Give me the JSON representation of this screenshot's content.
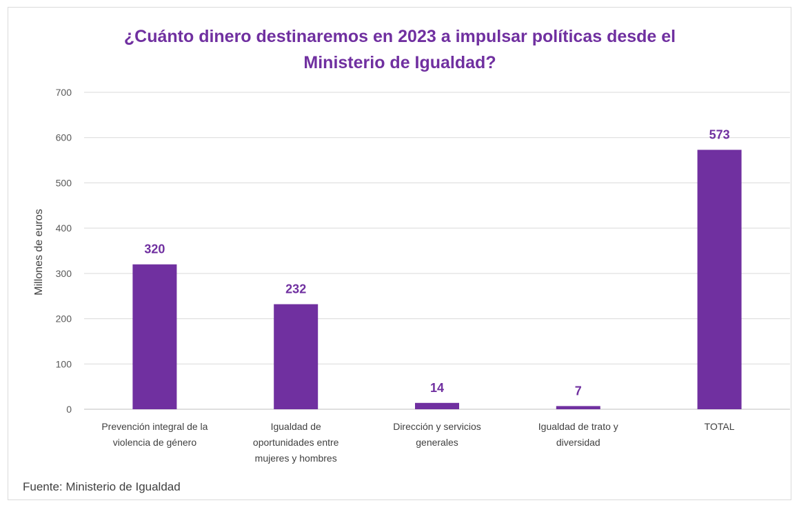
{
  "chart_data": {
    "type": "bar",
    "title": "¿Cuánto dinero destinaremos en 2023 a impulsar políticas desde el Ministerio de Igualdad?",
    "xlabel": "",
    "ylabel": "Millones de euros",
    "ylim": [
      0,
      700
    ],
    "yticks": [
      "0",
      "100",
      "200",
      "300",
      "400",
      "500",
      "600",
      "700"
    ],
    "grid": true,
    "legend": "none",
    "bar_color": "#7030a0",
    "categories": [
      [
        "Prevención integral de la",
        "violencia de género"
      ],
      [
        "Igualdad de",
        "oportunidades entre",
        "mujeres y hombres"
      ],
      [
        "Dirección y servicios",
        "generales"
      ],
      [
        "Igualdad de trato y",
        "diversidad"
      ],
      [
        "TOTAL"
      ]
    ],
    "values": [
      320,
      232,
      14,
      7,
      573
    ],
    "data_labels": [
      "320",
      "232",
      "14",
      "7",
      "573"
    ]
  },
  "source": "Fuente: Ministerio de Igualdad"
}
